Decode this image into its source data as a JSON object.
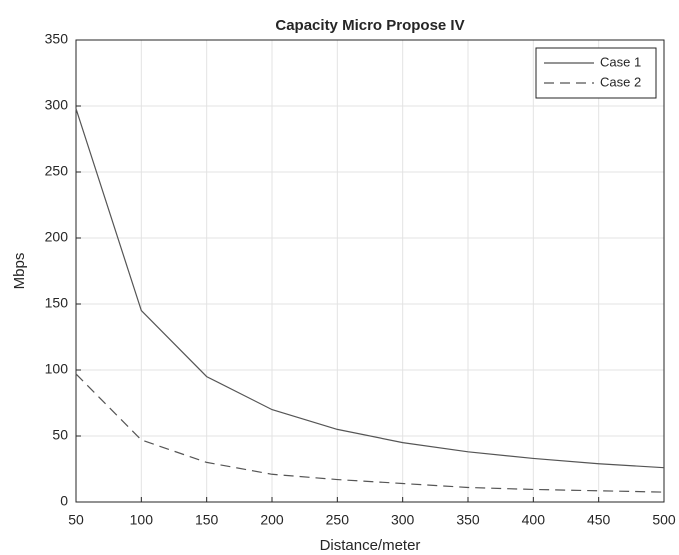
{
  "chart_data": {
    "type": "line",
    "title": "Capacity Micro Propose IV",
    "x_label": "Distance/meter",
    "y_label": "Mbps",
    "x": [
      50,
      100,
      150,
      200,
      250,
      300,
      350,
      400,
      450,
      500
    ],
    "series": [
      {
        "name": "Case 1",
        "color": "#555555",
        "dash": "solid",
        "values": [
          298,
          145,
          95,
          70,
          55,
          45,
          38,
          33,
          29,
          26
        ]
      },
      {
        "name": "Case 2",
        "color": "#555555",
        "dash": "dashed",
        "values": [
          97,
          47,
          30,
          21,
          17,
          14,
          11,
          9.5,
          8.5,
          7.5
        ]
      }
    ],
    "xlim": [
      50,
      500
    ],
    "xticks": [
      50,
      100,
      150,
      200,
      250,
      300,
      350,
      400,
      450,
      500
    ],
    "ylim": [
      0,
      350
    ],
    "yticks": [
      0,
      50,
      100,
      150,
      200,
      250,
      300,
      350
    ],
    "grid": true,
    "legend": "top-right"
  }
}
